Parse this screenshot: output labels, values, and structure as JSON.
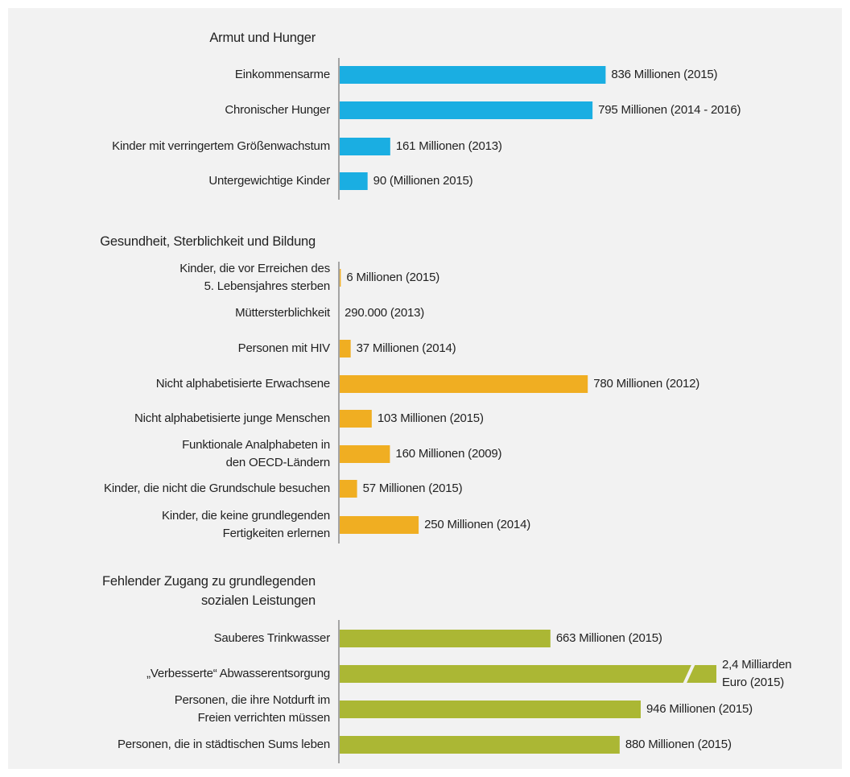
{
  "chart_data": [
    {
      "type": "bar",
      "title": "Armut und Hunger",
      "color": "#1aaee2",
      "categories": [
        "Einkommensarme",
        "Chronischer Hunger",
        "Kinder mit verringertem Größenwachstum",
        "Untergewichtige Kinder"
      ],
      "values": [
        836,
        795,
        161,
        90
      ],
      "value_labels": [
        "836 Millionen (2015)",
        "795 Millionen (2014 - 2016)",
        "161 Millionen (2013)",
        "90 (Millionen 2015)"
      ]
    },
    {
      "type": "bar",
      "title": "Gesundheit, Sterblichkeit und Bildung",
      "color": "#f0ae22",
      "categories": [
        "Kinder, die vor Erreichen des\n5. Lebensjahres sterben",
        "Müttersterblichkeit",
        "Personen mit HIV",
        "Nicht alphabetisierte Erwachsene",
        "Nicht alphabetisierte junge Menschen",
        "Funktionale Analphabeten in\nden OECD-Ländern",
        "Kinder, die nicht die Grundschule besuchen",
        "Kinder, die keine grundlegenden\nFertigkeiten erlernen"
      ],
      "values": [
        6,
        0.29,
        37,
        780,
        103,
        160,
        57,
        250
      ],
      "value_labels": [
        "6 Millionen (2015)",
        "290.000 (2013)",
        "37 Millionen (2014)",
        "780 Millionen (2012)",
        "103 Millionen (2015)",
        "160 Millionen (2009)",
        "57 Millionen (2015)",
        "250 Millionen (2014)"
      ]
    },
    {
      "type": "bar",
      "title": "Fehlender Zugang zu grundlegenden\nsozialen Leistungen",
      "color": "#abb734",
      "categories": [
        "Sauberes Trinkwasser",
        "„Verbesserte“ Abwasserentsorgung",
        "Personen, die ihre Notdurft im\nFreien verrichten müssen",
        "Personen, die in städtischen Sums leben"
      ],
      "values": [
        663,
        2400,
        946,
        880
      ],
      "value_labels": [
        "663 Millionen (2015)",
        "2,4 Milliarden\nEuro (2015)",
        "946 Millionen (2015)",
        "880 Millionen (2015)"
      ]
    }
  ]
}
